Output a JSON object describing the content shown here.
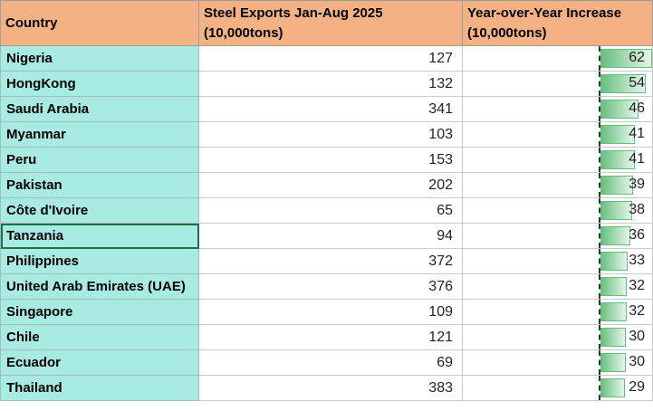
{
  "columns": {
    "country": "Country",
    "exports": "Steel Exports Jan-Aug 2025 (10,000tons)",
    "increase": "Year-over-Year Increase (10,000tons)"
  },
  "rows": [
    {
      "country": "Nigeria",
      "exports": 127,
      "increase": 62
    },
    {
      "country": "HongKong",
      "exports": 132,
      "increase": 54
    },
    {
      "country": "Saudi Arabia",
      "exports": 341,
      "increase": 46
    },
    {
      "country": "Myanmar",
      "exports": 103,
      "increase": 41
    },
    {
      "country": "Peru",
      "exports": 153,
      "increase": 41
    },
    {
      "country": "Pakistan",
      "exports": 202,
      "increase": 39
    },
    {
      "country": "Côte d'Ivoire",
      "exports": 65,
      "increase": 38
    },
    {
      "country": "Tanzania",
      "exports": 94,
      "increase": 36
    },
    {
      "country": "Philippines",
      "exports": 372,
      "increase": 33
    },
    {
      "country": "United Arab Emirates (UAE)",
      "exports": 376,
      "increase": 32
    },
    {
      "country": "Singapore",
      "exports": 109,
      "increase": 32
    },
    {
      "country": "Chile",
      "exports": 121,
      "increase": 30
    },
    {
      "country": "Ecuador",
      "exports": 69,
      "increase": 30
    },
    {
      "country": "Thailand",
      "exports": 383,
      "increase": 29
    }
  ],
  "data_bar": {
    "max": 62,
    "color": "#63be7b"
  },
  "colors": {
    "header": "#f4b183",
    "country_fill": "#a8ebe3"
  }
}
